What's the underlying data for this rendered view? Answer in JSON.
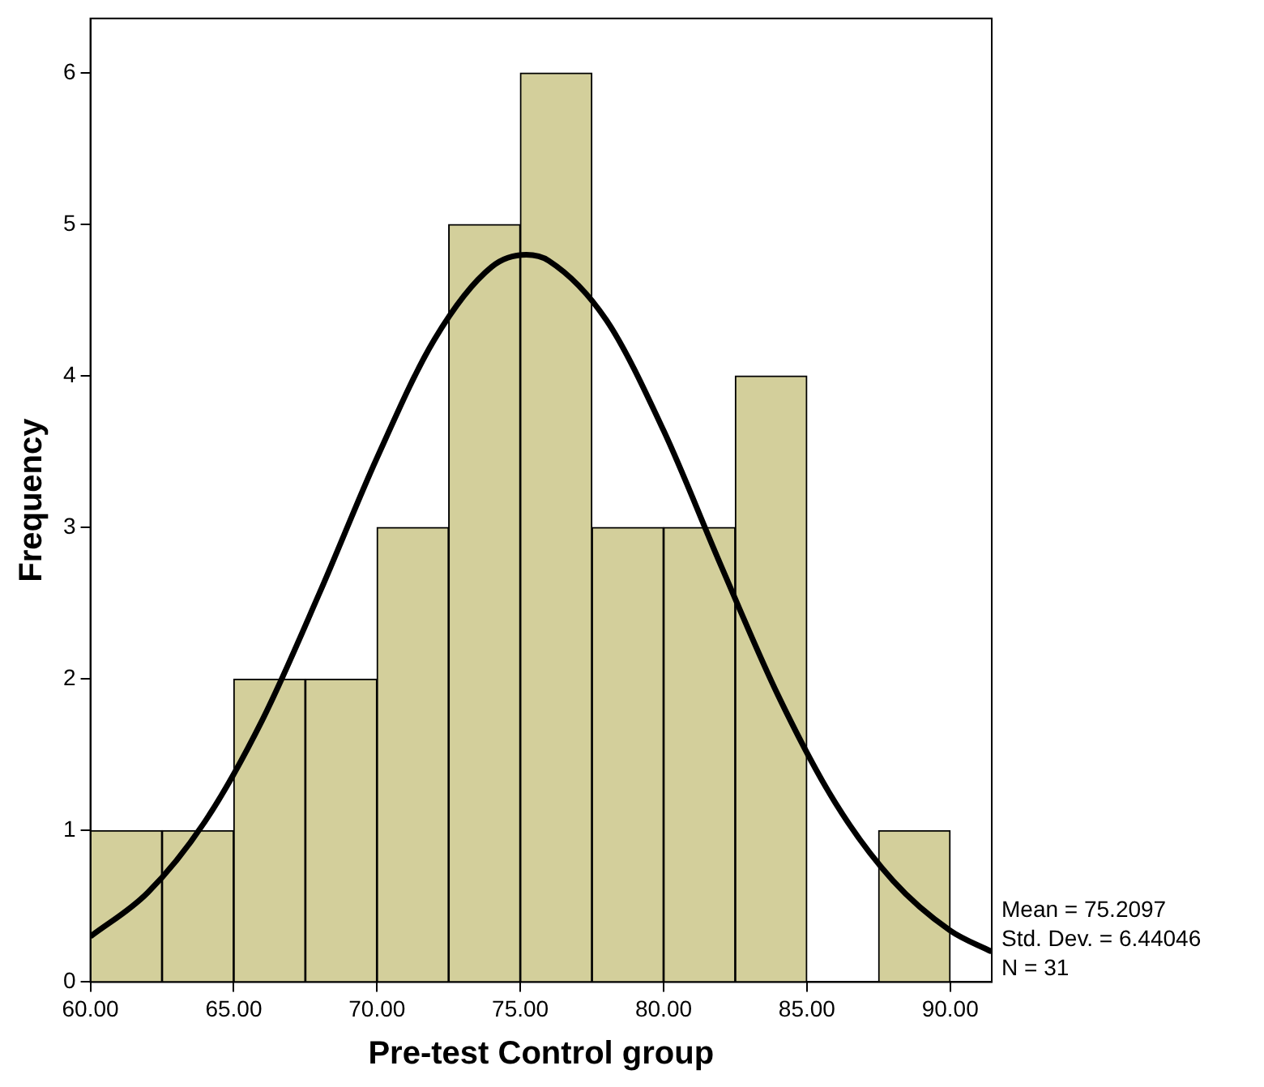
{
  "chart_data": {
    "type": "histogram",
    "xlabel": "Pre-test Control group",
    "ylabel": "Frequency",
    "xlim": [
      60,
      91.45
    ],
    "ylim": [
      0,
      6.36
    ],
    "xticks": [
      {
        "value": 60,
        "label": "60.00"
      },
      {
        "value": 65,
        "label": "65.00"
      },
      {
        "value": 70,
        "label": "70.00"
      },
      {
        "value": 75,
        "label": "75.00"
      },
      {
        "value": 80,
        "label": "80.00"
      },
      {
        "value": 85,
        "label": "85.00"
      },
      {
        "value": 90,
        "label": "90.00"
      }
    ],
    "yticks": [
      0,
      1,
      2,
      3,
      4,
      5,
      6
    ],
    "grid": false,
    "series": [
      {
        "color": "#d3cf9b",
        "bins": [
          60,
          62.5,
          65,
          67.5,
          70,
          72.5,
          75,
          77.5,
          80,
          82.5,
          85,
          87.5,
          90
        ],
        "values": [
          1,
          1,
          2,
          2,
          3,
          5,
          6,
          3,
          3,
          4,
          0,
          1
        ]
      },
      {
        "type": "line",
        "color": "#000000",
        "x": [
          60,
          62,
          64,
          66,
          68,
          70,
          72,
          74,
          75.21,
          76,
          78,
          80,
          82,
          84,
          86,
          88,
          90,
          91.45
        ],
        "values": [
          0.3,
          0.59,
          1.06,
          1.73,
          2.57,
          3.46,
          4.24,
          4.72,
          4.8,
          4.76,
          4.37,
          3.64,
          2.75,
          1.89,
          1.18,
          0.67,
          0.34,
          0.2
        ]
      }
    ],
    "annotations": [
      "Mean = 75.2097",
      "Std. Dev. = 6.44046",
      "N = 31"
    ]
  }
}
